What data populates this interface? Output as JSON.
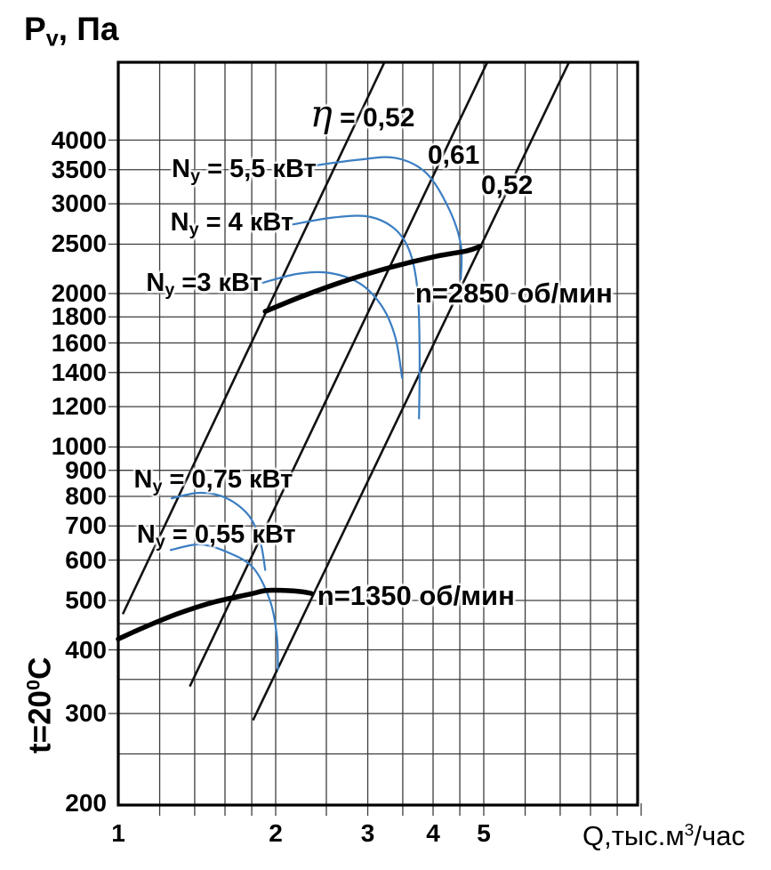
{
  "figure": {
    "y_axis_title_parts": {
      "p0": "P",
      "p1": "v",
      "p2": ", Па"
    },
    "x_axis_title_parts": {
      "p0": "Q,тыс.м",
      "p1": "3",
      "p2": "/час"
    },
    "side_note_parts": {
      "p0": "t=20",
      "p1": "0",
      "p2": "C"
    }
  },
  "colors": {
    "background": "#ffffff",
    "border": "#000000",
    "grid": "#3d3d3d",
    "fan_curve": "#000000",
    "efficiency_line": "#111111",
    "power_curve": "#3b7ec2",
    "text": "#000000"
  },
  "chart_data": {
    "type": "line",
    "x_axis": {
      "label": "Q, тыс.м3/час",
      "scale": "log",
      "min": 1,
      "max": 10,
      "gridlines": [
        1,
        1.2,
        1.4,
        1.6,
        1.8,
        2,
        2.5,
        3,
        3.5,
        4,
        4.5,
        5,
        6,
        7,
        8,
        9,
        10
      ],
      "tick_labels": [
        "1",
        "2",
        "3",
        "4",
        "5"
      ],
      "tick_values": [
        1,
        2,
        3,
        4,
        5
      ]
    },
    "y_axis": {
      "label": "Pv, Па",
      "scale": "log",
      "min": 200,
      "max": 5690,
      "gridlines": [
        200,
        250,
        300,
        350,
        400,
        450,
        500,
        600,
        700,
        800,
        900,
        1000,
        1200,
        1400,
        1600,
        1800,
        2000,
        2500,
        3000,
        3500,
        4000
      ],
      "tick_labels": [
        "200",
        "300",
        "400",
        "500",
        "600",
        "700",
        "800",
        "900",
        "1000",
        "1200",
        "1400",
        "1600",
        "1800",
        "2000",
        "2500",
        "3000",
        "3500",
        "4000"
      ],
      "tick_values": [
        200,
        300,
        400,
        500,
        600,
        700,
        800,
        900,
        1000,
        1200,
        1400,
        1600,
        1800,
        2000,
        2500,
        3000,
        3500,
        4000
      ]
    },
    "fan_curves": [
      {
        "id": "fan-2850",
        "name": "n=2850 об/мин",
        "points": [
          [
            1.91,
            1845
          ],
          [
            2.25,
            1976
          ],
          [
            2.74,
            2124
          ],
          [
            3.33,
            2254
          ],
          [
            4.05,
            2366
          ],
          [
            4.64,
            2425
          ],
          [
            4.92,
            2475
          ]
        ]
      },
      {
        "id": "fan-1350",
        "name": "n=1350 об/мин",
        "points": [
          [
            1.0,
            420
          ],
          [
            1.11,
            441
          ],
          [
            1.3,
            471
          ],
          [
            1.52,
            496
          ],
          [
            1.78,
            514
          ],
          [
            1.92,
            523
          ],
          [
            2.08,
            523
          ],
          [
            2.25,
            520
          ],
          [
            2.34,
            516
          ]
        ]
      }
    ],
    "efficiency_lines": [
      {
        "id": "eta-052-left",
        "name": "η = 0,52",
        "points": [
          [
            1.02,
            470
          ],
          [
            3.23,
            5690
          ]
        ]
      },
      {
        "id": "eta-061",
        "name": "0,61",
        "points": [
          [
            1.37,
            339
          ],
          [
            5.08,
            5690
          ]
        ]
      },
      {
        "id": "eta-052-right",
        "name": "0,52",
        "points": [
          [
            1.81,
            291
          ],
          [
            7.28,
            5690
          ]
        ]
      }
    ],
    "power_curves": [
      {
        "id": "power-5p5",
        "name": "Ny = 5,5 кВт",
        "points": [
          [
            2.29,
            3546
          ],
          [
            2.85,
            3656
          ],
          [
            3.39,
            3690
          ],
          [
            3.89,
            3440
          ],
          [
            4.29,
            2932
          ],
          [
            4.52,
            2492
          ],
          [
            4.52,
            2136
          ]
        ]
      },
      {
        "id": "power-4",
        "name": "Ny = 4 кВт",
        "points": [
          [
            2.16,
            2734
          ],
          [
            2.58,
            2820
          ],
          [
            3.02,
            2830
          ],
          [
            3.39,
            2670
          ],
          [
            3.62,
            2396
          ],
          [
            3.74,
            2000
          ],
          [
            3.77,
            1510
          ],
          [
            3.76,
            1138
          ]
        ]
      },
      {
        "id": "power-3",
        "name": "Ny = 3 кВт",
        "points": [
          [
            1.89,
            2100
          ],
          [
            2.2,
            2186
          ],
          [
            2.53,
            2196
          ],
          [
            2.9,
            2092
          ],
          [
            3.2,
            1882
          ],
          [
            3.39,
            1636
          ],
          [
            3.49,
            1366
          ]
        ]
      },
      {
        "id": "power-0p75",
        "name": "Ny = 0,75 кВт",
        "points": [
          [
            1.265,
            793
          ],
          [
            1.434,
            813
          ],
          [
            1.613,
            793
          ],
          [
            1.78,
            732
          ],
          [
            1.87,
            650
          ],
          [
            1.91,
            574
          ]
        ]
      },
      {
        "id": "power-0p55",
        "name": "Ny = 0,55 кВт",
        "points": [
          [
            1.26,
            628
          ],
          [
            1.43,
            644
          ],
          [
            1.61,
            623
          ],
          [
            1.81,
            580
          ],
          [
            1.95,
            500
          ],
          [
            2.01,
            426
          ],
          [
            2.02,
            366
          ]
        ]
      }
    ],
    "annotations": [
      {
        "id": "label-eta-052-left",
        "q": 2.93,
        "p": 4420,
        "size": 30,
        "parts": [
          {
            "t": "η",
            "cls": "eta"
          },
          {
            "t": " = 0,52"
          }
        ]
      },
      {
        "id": "label-eta-061",
        "q": 4.38,
        "p": 3730,
        "size": 30,
        "parts": [
          {
            "t": "0,61"
          }
        ]
      },
      {
        "id": "label-eta-052-right",
        "q": 5.54,
        "p": 3250,
        "size": 30,
        "parts": [
          {
            "t": "0,52"
          }
        ]
      },
      {
        "id": "label-power-5p5",
        "q": 1.74,
        "p": 3480,
        "size": 29,
        "parts": [
          {
            "t": "N"
          },
          {
            "t": "y",
            "sub": true
          },
          {
            "t": " = 5,5 кВт"
          }
        ]
      },
      {
        "id": "label-power-4",
        "q": 1.65,
        "p": 2740,
        "size": 29,
        "parts": [
          {
            "t": "N"
          },
          {
            "t": "y",
            "sub": true
          },
          {
            "t": " = 4 кВт"
          }
        ]
      },
      {
        "id": "label-power-3",
        "q": 1.46,
        "p": 2080,
        "size": 29,
        "parts": [
          {
            "t": "N"
          },
          {
            "t": "y",
            "sub": true
          },
          {
            "t": " =3 кВт"
          }
        ]
      },
      {
        "id": "label-fan-2850",
        "q": 5.71,
        "p": 2000,
        "size": 31,
        "speed": true,
        "parts": [
          {
            "t": "n=2850 об/мин"
          }
        ]
      },
      {
        "id": "label-power-0p75",
        "q": 1.52,
        "p": 858,
        "size": 29,
        "parts": [
          {
            "t": "N"
          },
          {
            "t": "y",
            "sub": true
          },
          {
            "t": " = 0,75 кВт"
          }
        ]
      },
      {
        "id": "label-power-0p55",
        "q": 1.54,
        "p": 668,
        "size": 29,
        "parts": [
          {
            "t": "N"
          },
          {
            "t": "y",
            "sub": true
          },
          {
            "t": " = 0,55 кВт"
          }
        ]
      },
      {
        "id": "label-fan-1350",
        "q": 3.71,
        "p": 510,
        "size": 31,
        "speed": true,
        "parts": [
          {
            "t": "n=1350 об/мин"
          }
        ]
      }
    ]
  }
}
